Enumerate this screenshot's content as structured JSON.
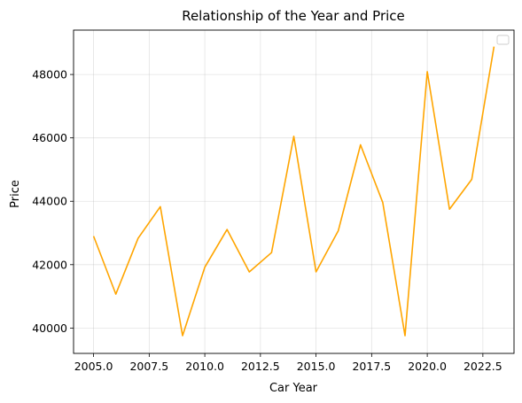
{
  "chart_data": {
    "type": "line",
    "title": "Relationship of the Year and Price",
    "xlabel": "Car Year",
    "ylabel": "Price",
    "x": [
      2005,
      2006,
      2007,
      2008,
      2009,
      2010,
      2011,
      2012,
      2013,
      2014,
      2015,
      2016,
      2017,
      2018,
      2019,
      2020,
      2021,
      2022,
      2023
    ],
    "series": [
      {
        "color": "#ffa500",
        "values": [
          42900,
          41070,
          42830,
          43830,
          39760,
          41920,
          43110,
          41770,
          42380,
          46050,
          41770,
          43070,
          45780,
          43960,
          39760,
          48090,
          43750,
          44690,
          48880
        ]
      }
    ],
    "xlim": [
      2004.1,
      2023.9
    ],
    "ylim": [
      39200,
      49400
    ],
    "xticks": [
      2005.0,
      2007.5,
      2010.0,
      2012.5,
      2015.0,
      2017.5,
      2020.0,
      2022.5
    ],
    "xtick_labels": [
      "2005.0",
      "2007.5",
      "2010.0",
      "2012.5",
      "2015.0",
      "2017.5",
      "2020.0",
      "2022.5"
    ],
    "yticks": [
      40000,
      42000,
      44000,
      46000,
      48000
    ],
    "ytick_labels": [
      "40000",
      "42000",
      "44000",
      "46000",
      "48000"
    ],
    "grid": true,
    "legend": "top-right, empty"
  }
}
